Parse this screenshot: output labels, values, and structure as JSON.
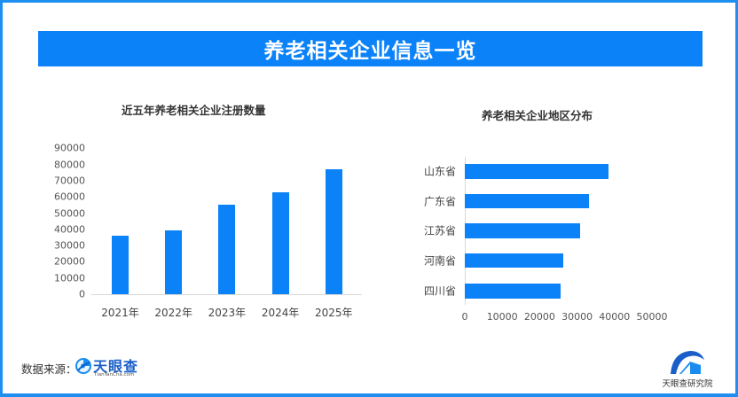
{
  "header": {
    "title": "养老相关企业信息一览"
  },
  "colors": {
    "accent": "#0b82f8",
    "frame": "#1e8ff0",
    "axis": "#d9d9d9",
    "text": "#333333"
  },
  "left_chart": {
    "title": "近五年养老相关企业注册数量",
    "yticks": [
      "90000",
      "80000",
      "70000",
      "60000",
      "50000",
      "40000",
      "30000",
      "20000",
      "10000",
      "0"
    ],
    "categories": [
      "2021年",
      "2022年",
      "2023年",
      "2024年",
      "2025年"
    ]
  },
  "right_chart": {
    "title": "养老相关企业地区分布",
    "categories": [
      "山东省",
      "广东省",
      "江苏省",
      "河南省",
      "四川省"
    ],
    "xticks": [
      "0",
      "10000",
      "20000",
      "30000",
      "40000",
      "50000"
    ]
  },
  "footer": {
    "source_label": "数据来源：",
    "source_logo_name": "天眼查",
    "source_logo_url": "TianYanCha.com",
    "institute_name": "天眼查研究院"
  },
  "chart_data": [
    {
      "type": "bar",
      "title": "近五年养老相关企业注册数量",
      "categories": [
        "2021年",
        "2022年",
        "2023年",
        "2024年",
        "2025年"
      ],
      "values": [
        36000,
        39500,
        55000,
        63000,
        77000
      ],
      "xlabel": "",
      "ylabel": "",
      "ylim": [
        0,
        90000
      ],
      "yticks": [
        0,
        10000,
        20000,
        30000,
        40000,
        50000,
        60000,
        70000,
        80000,
        90000
      ],
      "grid": false,
      "legend": "none",
      "color": "#0b82f8"
    },
    {
      "type": "bar",
      "orientation": "horizontal",
      "title": "养老相关企业地区分布",
      "categories": [
        "山东省",
        "广东省",
        "江苏省",
        "河南省",
        "四川省"
      ],
      "values": [
        38400,
        33200,
        30900,
        26400,
        25600
      ],
      "xlabel": "",
      "ylabel": "",
      "xlim": [
        0,
        50000
      ],
      "xticks": [
        0,
        10000,
        20000,
        30000,
        40000,
        50000
      ],
      "grid": false,
      "legend": "none",
      "color": "#0b82f8"
    }
  ]
}
